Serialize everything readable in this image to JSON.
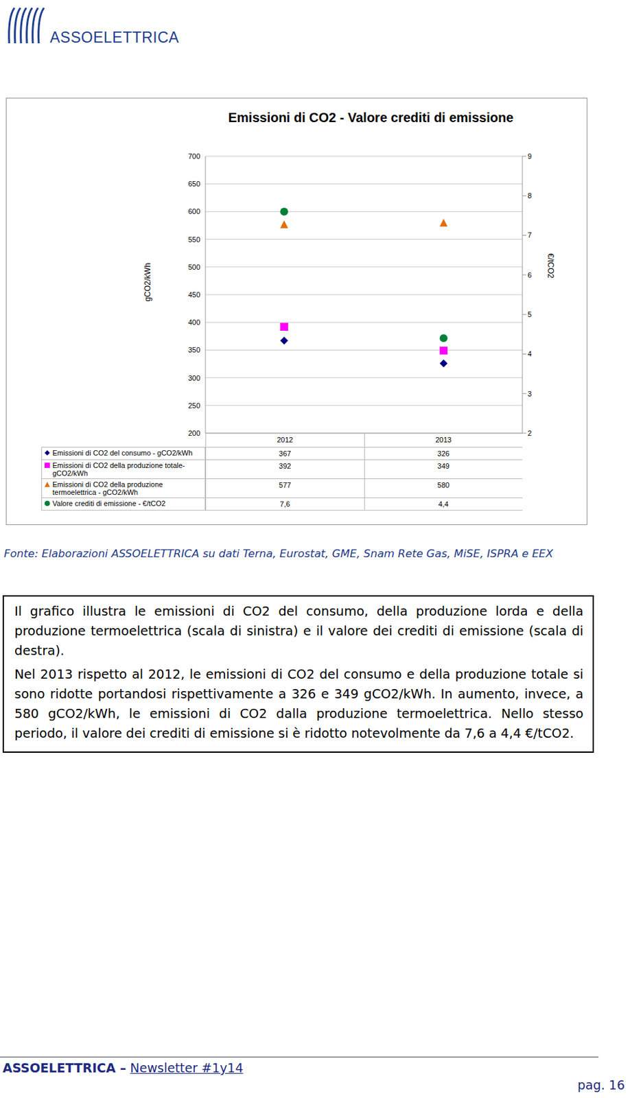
{
  "header": {
    "logo_text": "ASSOELETTRICA"
  },
  "chart_data": {
    "type": "scatter",
    "title": "Emissioni di CO2 - Valore crediti di emissione",
    "y_label": "gCO2/kWh",
    "y2_label": "€/tCO2",
    "categories": [
      "2012",
      "2013"
    ],
    "series": [
      {
        "name": "Emissioni di CO2 del consumo - gCO2/kWh",
        "color": "#000080",
        "marker": "diamond",
        "values": [
          367,
          326
        ]
      },
      {
        "name": "Emissioni di CO2 della produzione totale-gCO2/kWh",
        "color": "#ff00ff",
        "marker": "square",
        "values": [
          392,
          349
        ]
      },
      {
        "name": "Emissioni di CO2 della produzione termoelettrica - gCO2/kWh",
        "color": "#e46c0a",
        "marker": "triangle",
        "values": [
          577,
          580
        ]
      },
      {
        "name": "Valore crediti di emissione - €/tCO2",
        "color": "#008037",
        "marker": "circle",
        "axis": "y2",
        "values": [
          7.6,
          4.4
        ],
        "value_labels": [
          "7,6",
          "4,4"
        ]
      }
    ],
    "ylim": [
      200,
      700
    ],
    "yticks": [
      200,
      250,
      300,
      350,
      400,
      450,
      500,
      550,
      600,
      650,
      700
    ],
    "y2lim": [
      2,
      9
    ],
    "y2ticks": [
      2,
      3,
      4,
      5,
      6,
      7,
      8,
      9
    ],
    "grid": true
  },
  "source": "Fonte: Elaborazioni ASSOELETTRICA su dati Terna, Eurostat, GME, Snam Rete Gas, MiSE, ISPRA e EEX",
  "text": {
    "paragraphs": [
      "Il grafico illustra le emissioni di CO2 del consumo, della produzione lorda e della produzione termoelettrica (scala di sinistra) e il valore dei crediti di emissione (scala di destra).",
      "Nel 2013 rispetto al 2012, le emissioni di CO2 del consumo e della produzione totale si sono ridotte portandosi rispettivamente a 326 e 349 gCO2/kWh. In aumento, invece, a 580 gCO2/kWh, le emissioni di CO2 dalla produzione termoelettrica. Nello stesso periodo, il valore dei crediti di emissione si è ridotto notevolmente da 7,6 a 4,4 €/tCO2."
    ]
  },
  "footer": {
    "brand": "ASSOELETTRICA",
    "separator": "–",
    "newsletter": "Newsletter #1y14",
    "page": "pag. 16"
  }
}
